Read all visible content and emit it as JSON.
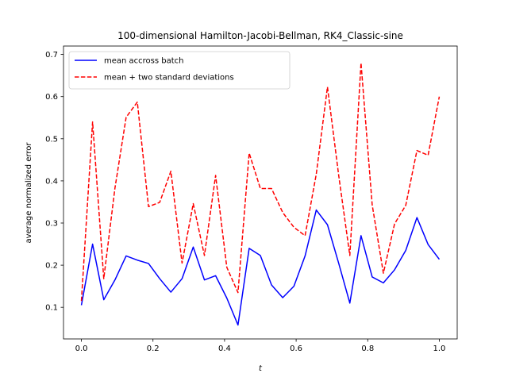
{
  "chart_data": {
    "type": "line",
    "title": "100-dimensional Hamilton-Jacobi-Bellman, RK4_Classic-sine",
    "xlabel": "t",
    "ylabel": "average normalized error",
    "xlim": [
      -0.05,
      1.05
    ],
    "ylim": [
      0.025,
      0.72
    ],
    "xticks": [
      0.0,
      0.2,
      0.4,
      0.6,
      0.8,
      1.0
    ],
    "xtick_labels": [
      "0.0",
      "0.2",
      "0.4",
      "0.6",
      "0.8",
      "1.0"
    ],
    "yticks": [
      0.1,
      0.2,
      0.3,
      0.4,
      0.5,
      0.6,
      0.7
    ],
    "ytick_labels": [
      "0.1",
      "0.2",
      "0.3",
      "0.4",
      "0.5",
      "0.6",
      "0.7"
    ],
    "legend_position": "top-left",
    "grid": false,
    "x": [
      0.0,
      0.03125,
      0.0625,
      0.09375,
      0.125,
      0.15625,
      0.1875,
      0.21875,
      0.25,
      0.28125,
      0.3125,
      0.34375,
      0.375,
      0.40625,
      0.4375,
      0.46875,
      0.5,
      0.53125,
      0.5625,
      0.59375,
      0.625,
      0.65625,
      0.6875,
      0.71875,
      0.75,
      0.78125,
      0.8125,
      0.84375,
      0.875,
      0.90625,
      0.9375,
      0.96875,
      1.0
    ],
    "series": [
      {
        "name": "mean accross batch",
        "color": "#0000ff",
        "dash": "solid",
        "values": [
          0.105,
          0.25,
          0.118,
          0.165,
          0.222,
          0.212,
          0.204,
          0.168,
          0.136,
          0.168,
          0.243,
          0.165,
          0.175,
          0.122,
          0.058,
          0.24,
          0.223,
          0.153,
          0.123,
          0.15,
          0.222,
          0.331,
          0.296,
          0.205,
          0.11,
          0.27,
          0.172,
          0.158,
          0.189,
          0.235,
          0.313,
          0.249,
          0.214
        ]
      },
      {
        "name": "mean + two standard deviations",
        "color": "#ff0000",
        "dash": "dashed",
        "values": [
          0.115,
          0.54,
          0.168,
          0.383,
          0.551,
          0.587,
          0.339,
          0.349,
          0.423,
          0.205,
          0.346,
          0.223,
          0.413,
          0.195,
          0.135,
          0.466,
          0.382,
          0.382,
          0.325,
          0.29,
          0.27,
          0.416,
          0.623,
          0.414,
          0.223,
          0.68,
          0.343,
          0.181,
          0.298,
          0.342,
          0.472,
          0.461,
          0.6
        ]
      }
    ]
  }
}
